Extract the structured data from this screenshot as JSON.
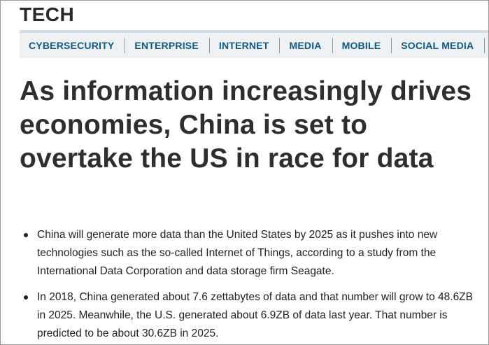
{
  "section": {
    "title": "TECH"
  },
  "nav": {
    "items": [
      {
        "label": "CYBERSECURITY"
      },
      {
        "label": "ENTERPRISE"
      },
      {
        "label": "INTERNET"
      },
      {
        "label": "MEDIA"
      },
      {
        "label": "MOBILE"
      },
      {
        "label": "SOCIAL MEDIA"
      }
    ],
    "link_color": "#0c5a8c"
  },
  "article": {
    "headline": "As information increasingly drives economies, China is set to overtake the US in race for data",
    "bullets": [
      "China will generate more data than the United States by 2025 as it pushes into new technologies such as the so-called Internet of Things, according to a study from the International Data Corporation and data storage firm Seagate.",
      "In 2018, China generated about 7.6 zettabytes of data and that number will grow to 48.6ZB in 2025. Meanwhile, the U.S. generated about 6.9ZB of data last year. That number is predicted to be about 30.6ZB in 2025."
    ]
  }
}
